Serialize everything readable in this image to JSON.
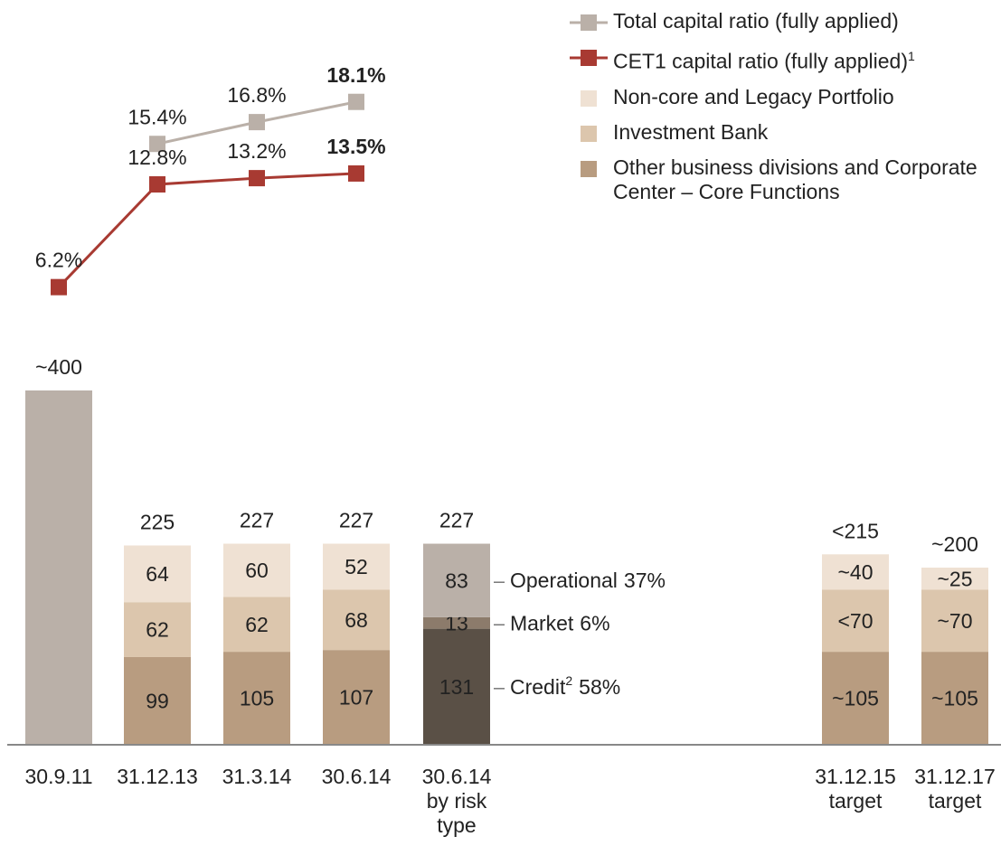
{
  "chart_data": {
    "type": "bar",
    "categories": [
      "30.9.11",
      "31.12.13",
      "31.3.14",
      "30.6.14",
      "30.6.14\nby risk\ntype",
      "31.12.15\ntarget",
      "31.12.17\ntarget"
    ],
    "ylim": [
      0,
      400
    ],
    "y2lim": [
      2,
      20
    ],
    "total_color": "#bab0a8",
    "totals": [
      400,
      225,
      227,
      227,
      227,
      215,
      200
    ],
    "total_labels": [
      "~400",
      "225",
      "227",
      "227",
      "227",
      "<215",
      "~200"
    ],
    "highlight_category": 3,
    "series": [
      {
        "name": "Other business divisions and Corporate Center – Core Functions",
        "color": "#b89c80",
        "values": [
          null,
          99,
          105,
          107,
          null,
          105,
          105
        ],
        "value_labels": [
          null,
          "99",
          "105",
          "107",
          null,
          "~105",
          "~105"
        ]
      },
      {
        "name": "Investment Bank",
        "color": "#dcc6ad",
        "values": [
          null,
          62,
          62,
          68,
          null,
          70,
          70
        ],
        "value_labels": [
          null,
          "62",
          "62",
          "68",
          null,
          "<70",
          "~70"
        ]
      },
      {
        "name": "Non-core and Legacy Portfolio",
        "color": "#efe1d3",
        "values": [
          null,
          64,
          60,
          52,
          null,
          40,
          25
        ],
        "value_labels": [
          null,
          "64",
          "60",
          "52",
          null,
          "~40",
          "~25"
        ]
      }
    ],
    "risk_series": [
      {
        "name": "Credit",
        "footnote": "2",
        "share": 58,
        "share_label": "58%",
        "color": "#5a5046",
        "label_color": "#ffffff",
        "values": [
          null,
          null,
          null,
          null,
          131,
          null,
          null
        ]
      },
      {
        "name": "Market",
        "share": 6,
        "share_label": "6%",
        "color": "#8c7b6b",
        "label_color": "#ffffff",
        "values": [
          null,
          null,
          null,
          null,
          13,
          null,
          null
        ]
      },
      {
        "name": "Operational",
        "share": 37,
        "share_label": "37%",
        "color": "#bab0a8",
        "label_color": "#222222",
        "values": [
          null,
          null,
          null,
          null,
          83,
          null,
          null
        ]
      }
    ],
    "lines": [
      {
        "name": "Total capital ratio (fully applied)",
        "color": "#bab0a8",
        "axis": "y2",
        "values": [
          null,
          15.4,
          16.8,
          18.1,
          null,
          null,
          null
        ],
        "value_labels": [
          null,
          "15.4%",
          "16.8%",
          "18.1%",
          null,
          null,
          null
        ]
      },
      {
        "name": "CET1 capital ratio (fully applied)",
        "footnote": "1",
        "color": "#a83a32",
        "axis": "y2",
        "values": [
          6.2,
          12.8,
          13.2,
          13.5,
          null,
          null,
          null
        ],
        "value_labels": [
          "6.2%",
          "12.8%",
          "13.2%",
          "13.5%",
          null,
          null,
          null
        ]
      }
    ]
  }
}
